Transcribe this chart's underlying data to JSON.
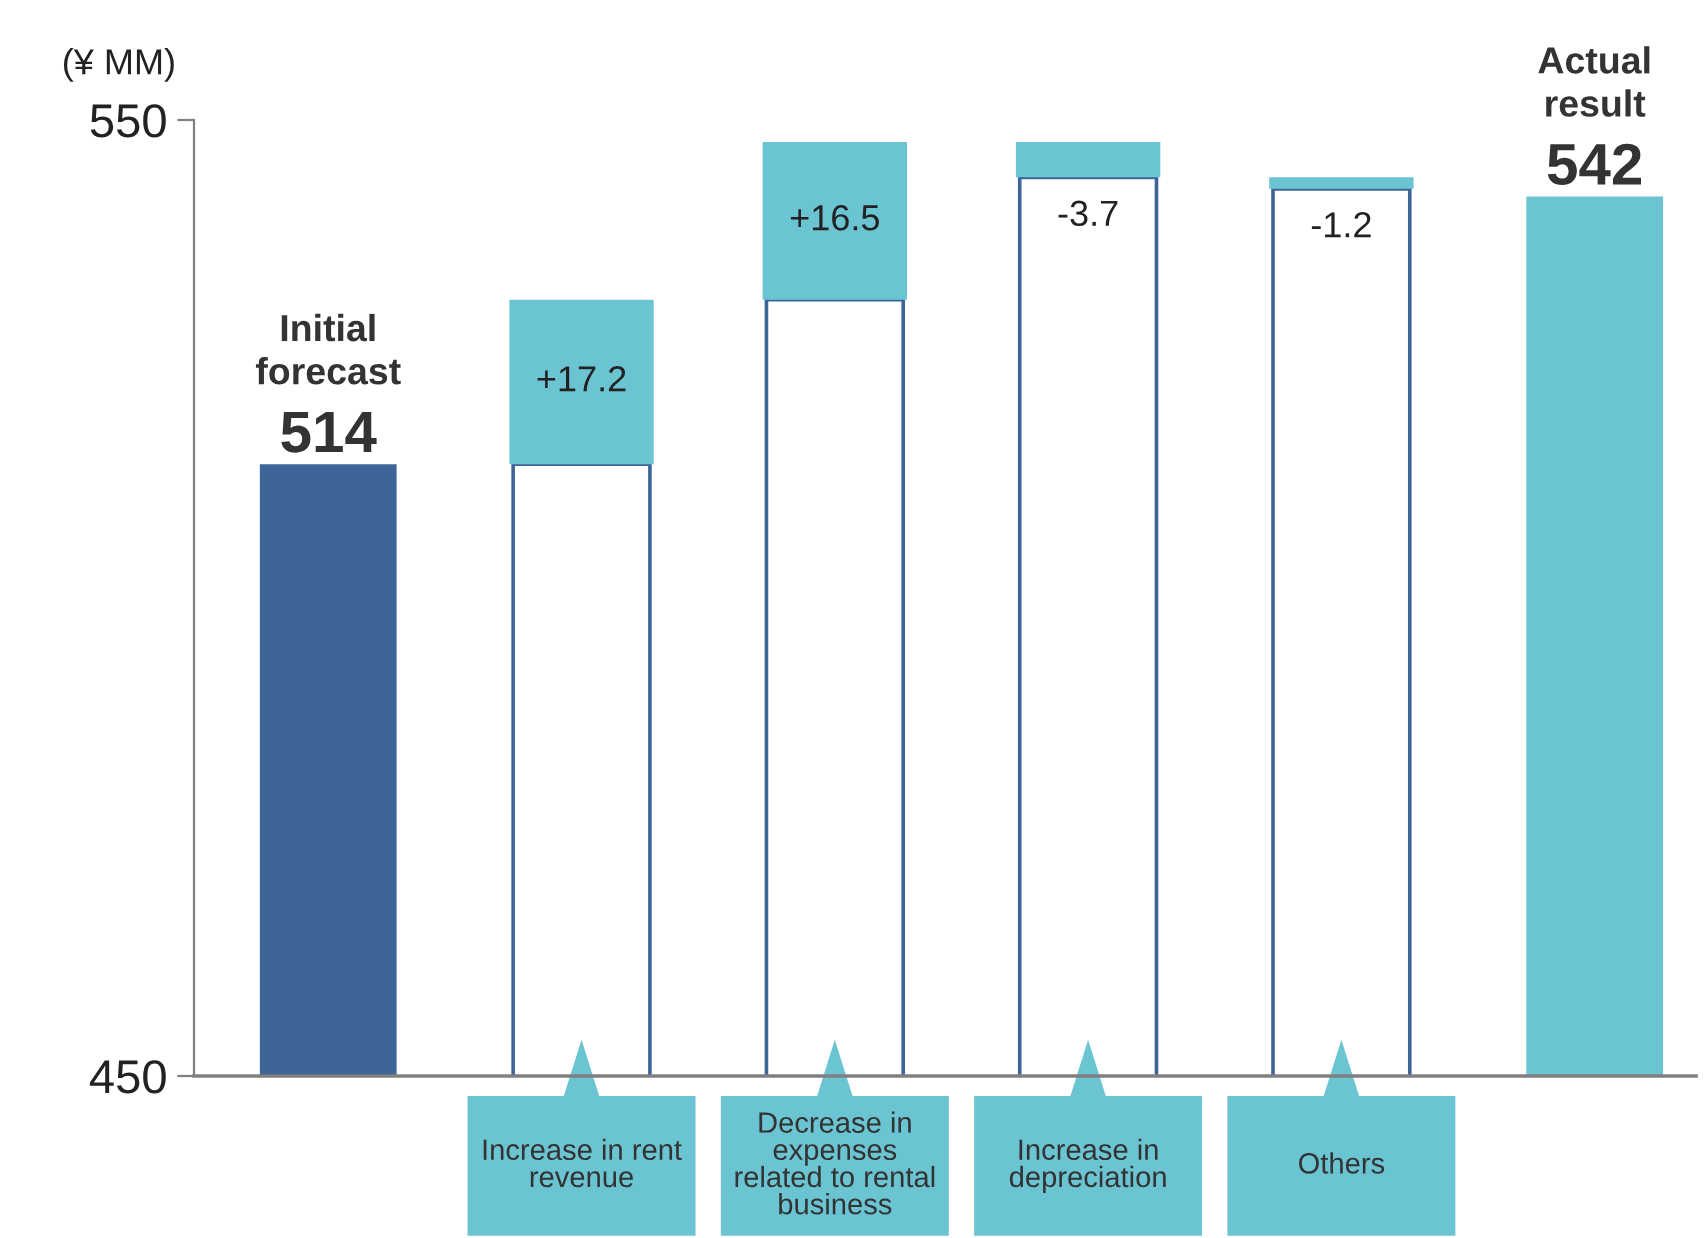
{
  "chart_data": {
    "type": "bar",
    "ylabel": "(¥ MM)",
    "categories": [
      "Initial\nforecast",
      "Increase in rent\nrevenue",
      "Decrease in\nexpenses\nrelated to rental\nbusiness",
      "Increase in\ndepreciation",
      "Others",
      "Actual\nresult"
    ],
    "series": [
      {
        "colors": [
          "#3d6598",
          "#ffffff",
          "#ffffff",
          "#ffffff",
          "#ffffff",
          "#6bc4d2"
        ],
        "values": [
          514,
          514,
          531.2,
          544,
          542.8,
          542
        ],
        "value_labels": [
          "514",
          null,
          null,
          null,
          null,
          "542"
        ]
      },
      {
        "color": "#6bc4d2",
        "base": [
          null,
          514,
          531.2,
          547.7,
          544,
          null
        ],
        "values": [
          null,
          17.2,
          16.5,
          -3.7,
          -1.2,
          null
        ],
        "value_labels": [
          null,
          "+17.2",
          "+16.5",
          "-3.7",
          "-1.2",
          null
        ]
      }
    ],
    "ylim": [
      450,
      550
    ],
    "yticks": [
      450,
      550
    ],
    "grid": false,
    "legend": false
  }
}
